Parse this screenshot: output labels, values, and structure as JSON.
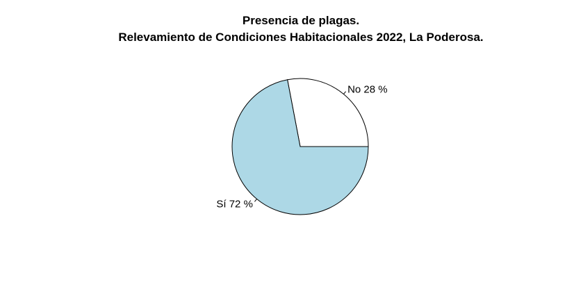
{
  "chart_data": {
    "type": "pie",
    "title": "Presencia de plagas.",
    "subtitle": "Relevamiento de Condiciones Habitacionales 2022, La Poderosa.",
    "slices": [
      {
        "label": "No 28 %",
        "value": 28,
        "color": "#ffffff"
      },
      {
        "label": "Sí 72 %",
        "value": 72,
        "color": "#add8e6"
      }
    ],
    "start_angle_deg": 0,
    "direction": "counterclockwise",
    "border_color": "#000000"
  }
}
